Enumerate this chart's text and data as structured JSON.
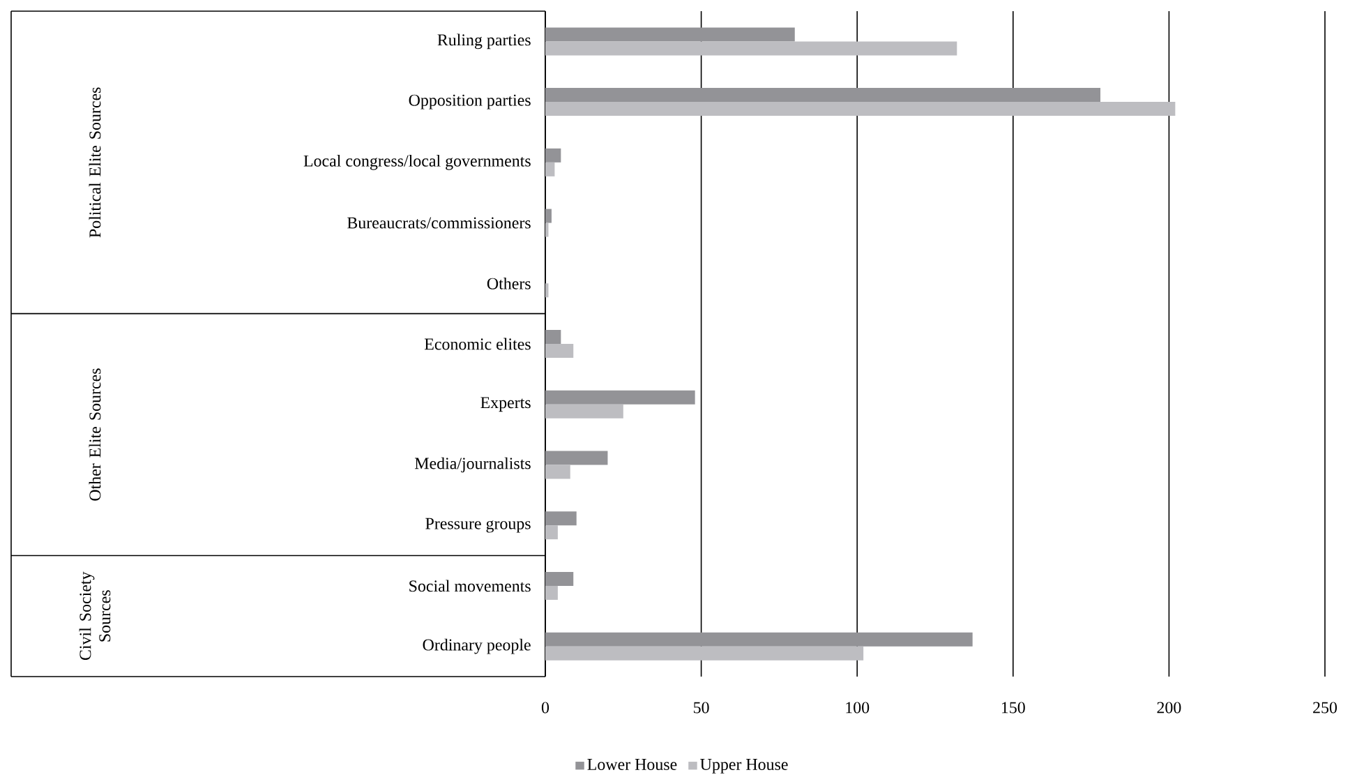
{
  "chart_data": {
    "type": "bar",
    "orientation": "horizontal",
    "categories": [
      "Ruling parties",
      "Opposition parties",
      "Local congress/local governments",
      "Bureaucrats/commissioners",
      "Others",
      "Economic elites",
      "Experts",
      "Media/journalists",
      "Pressure groups",
      "Social movements",
      "Ordinary people"
    ],
    "series": [
      {
        "name": "Lower House",
        "color": "#939397",
        "values": [
          80,
          178,
          5,
          2,
          0,
          5,
          48,
          20,
          10,
          9,
          137
        ]
      },
      {
        "name": "Upper House",
        "color": "#bdbdc1",
        "values": [
          132,
          202,
          3,
          1,
          1,
          9,
          25,
          8,
          4,
          4,
          102
        ]
      }
    ],
    "xlim": [
      0,
      250
    ],
    "xticks": [
      0,
      50,
      100,
      150,
      200,
      250
    ],
    "grid": "x",
    "legend": "bottom",
    "annotations": [
      "Political Elite Sources",
      "Other Elite Sources",
      "Civil Society Sources"
    ]
  }
}
